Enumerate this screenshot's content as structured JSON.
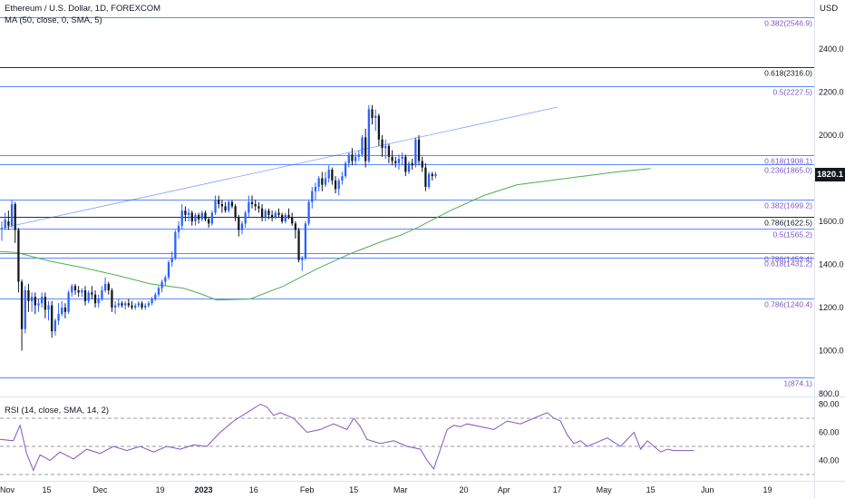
{
  "header": {
    "title": "Ethereum / U.S. Dollar, 1D, FOREXCOM",
    "ma_label": "MA (50, close, 0, SMA, 5)",
    "rsi_label": "RSI (14, close, SMA, 14, 2)",
    "currency": "USD"
  },
  "price_badge": "1820.1",
  "colors": {
    "up": "#2962ff",
    "down": "#131722",
    "ma": "#4caf50",
    "rsi": "#7e57c2",
    "fib_blue": "#2962ff",
    "fib_black": "#131722",
    "trendline": "#2962ff"
  },
  "chart_data": [
    {
      "type": "candlestick",
      "title": "Ethereum / U.S. Dollar, 1D, FOREXCOM",
      "y_axis_ticks": [
        2400,
        2200,
        2000,
        1800,
        1600,
        1400,
        1200,
        1000,
        800
      ],
      "y_tick_labels": [
        "2400.0",
        "2200.0",
        "2000.0",
        "1800.0",
        "1600.0",
        "1400.0",
        "1200.0",
        "1000.0",
        "800.0"
      ],
      "ylim": [
        800,
        2580
      ],
      "x_tick_labels": [
        "Nov",
        "15",
        "Dec",
        "19",
        "2023",
        "16",
        "Feb",
        "15",
        "Mar",
        "20",
        "Apr",
        "17",
        "May",
        "15",
        "Jun",
        "19"
      ],
      "x_tick_days": [
        0,
        14,
        30,
        48,
        61,
        76,
        92,
        106,
        120,
        139,
        151,
        167,
        181,
        195,
        212,
        230
      ],
      "x_range_days": [
        0,
        244
      ],
      "ohlc": [
        [
          1570,
          1600,
          1510,
          1570
        ],
        [
          1570,
          1640,
          1560,
          1610
        ],
        [
          1600,
          1650,
          1560,
          1580
        ],
        [
          1580,
          1700,
          1570,
          1680
        ],
        [
          1680,
          1690,
          1500,
          1560
        ],
        [
          1560,
          1570,
          1270,
          1320
        ],
        [
          1320,
          1330,
          1000,
          1100
        ],
        [
          1100,
          1300,
          1080,
          1280
        ],
        [
          1280,
          1310,
          1180,
          1230
        ],
        [
          1230,
          1270,
          1180,
          1250
        ],
        [
          1250,
          1270,
          1170,
          1210
        ],
        [
          1210,
          1240,
          1180,
          1220
        ],
        [
          1220,
          1270,
          1200,
          1250
        ],
        [
          1250,
          1270,
          1150,
          1190
        ],
        [
          1190,
          1230,
          1140,
          1210
        ],
        [
          1210,
          1230,
          1060,
          1090
        ],
        [
          1090,
          1150,
          1070,
          1140
        ],
        [
          1140,
          1220,
          1120,
          1170
        ],
        [
          1170,
          1230,
          1160,
          1200
        ],
        [
          1200,
          1220,
          1150,
          1180
        ],
        [
          1180,
          1280,
          1170,
          1270
        ],
        [
          1270,
          1310,
          1250,
          1300
        ],
        [
          1300,
          1310,
          1260,
          1280
        ],
        [
          1280,
          1300,
          1250,
          1270
        ],
        [
          1270,
          1290,
          1250,
          1280
        ],
        [
          1280,
          1300,
          1210,
          1230
        ],
        [
          1230,
          1280,
          1220,
          1270
        ],
        [
          1270,
          1300,
          1240,
          1260
        ],
        [
          1260,
          1280,
          1200,
          1220
        ],
        [
          1220,
          1260,
          1200,
          1240
        ],
        [
          1240,
          1300,
          1230,
          1280
        ],
        [
          1280,
          1340,
          1270,
          1310
        ],
        [
          1310,
          1320,
          1260,
          1280
        ],
        [
          1280,
          1290,
          1180,
          1200
        ],
        [
          1200,
          1230,
          1170,
          1210
        ],
        [
          1210,
          1240,
          1200,
          1220
        ],
        [
          1220,
          1230,
          1200,
          1210
        ],
        [
          1210,
          1230,
          1190,
          1220
        ],
        [
          1220,
          1240,
          1200,
          1210
        ],
        [
          1210,
          1230,
          1190,
          1200
        ],
        [
          1200,
          1220,
          1190,
          1210
        ],
        [
          1210,
          1230,
          1200,
          1220
        ],
        [
          1220,
          1230,
          1190,
          1200
        ],
        [
          1200,
          1220,
          1190,
          1210
        ],
        [
          1210,
          1230,
          1200,
          1220
        ],
        [
          1220,
          1250,
          1210,
          1240
        ],
        [
          1240,
          1270,
          1230,
          1260
        ],
        [
          1260,
          1300,
          1250,
          1290
        ],
        [
          1290,
          1330,
          1270,
          1320
        ],
        [
          1320,
          1350,
          1300,
          1340
        ],
        [
          1340,
          1420,
          1330,
          1410
        ],
        [
          1410,
          1460,
          1390,
          1430
        ],
        [
          1430,
          1560,
          1420,
          1550
        ],
        [
          1550,
          1600,
          1520,
          1580
        ],
        [
          1580,
          1680,
          1560,
          1650
        ],
        [
          1650,
          1670,
          1600,
          1630
        ],
        [
          1630,
          1660,
          1600,
          1640
        ],
        [
          1640,
          1650,
          1580,
          1600
        ],
        [
          1600,
          1640,
          1580,
          1630
        ],
        [
          1630,
          1640,
          1590,
          1610
        ],
        [
          1610,
          1650,
          1600,
          1640
        ],
        [
          1640,
          1650,
          1600,
          1610
        ],
        [
          1610,
          1620,
          1570,
          1590
        ],
        [
          1590,
          1650,
          1580,
          1640
        ],
        [
          1640,
          1720,
          1630,
          1700
        ],
        [
          1700,
          1720,
          1660,
          1680
        ],
        [
          1680,
          1700,
          1640,
          1670
        ],
        [
          1670,
          1690,
          1640,
          1650
        ],
        [
          1650,
          1700,
          1640,
          1690
        ],
        [
          1690,
          1700,
          1660,
          1670
        ],
        [
          1670,
          1680,
          1600,
          1620
        ],
        [
          1620,
          1630,
          1530,
          1560
        ],
        [
          1560,
          1600,
          1540,
          1590
        ],
        [
          1590,
          1650,
          1570,
          1640
        ],
        [
          1640,
          1720,
          1620,
          1690
        ],
        [
          1690,
          1720,
          1660,
          1680
        ],
        [
          1680,
          1700,
          1650,
          1670
        ],
        [
          1670,
          1690,
          1640,
          1660
        ],
        [
          1660,
          1680,
          1600,
          1620
        ],
        [
          1620,
          1660,
          1600,
          1650
        ],
        [
          1650,
          1660,
          1610,
          1630
        ],
        [
          1630,
          1650,
          1600,
          1620
        ],
        [
          1620,
          1650,
          1610,
          1640
        ],
        [
          1640,
          1660,
          1620,
          1630
        ],
        [
          1630,
          1640,
          1590,
          1600
        ],
        [
          1600,
          1640,
          1590,
          1630
        ],
        [
          1630,
          1660,
          1610,
          1620
        ],
        [
          1620,
          1640,
          1580,
          1590
        ],
        [
          1590,
          1600,
          1520,
          1560
        ],
        [
          1560,
          1570,
          1410,
          1420
        ],
        [
          1420,
          1440,
          1370,
          1430
        ],
        [
          1430,
          1600,
          1420,
          1590
        ],
        [
          1590,
          1700,
          1580,
          1690
        ],
        [
          1690,
          1760,
          1660,
          1740
        ],
        [
          1740,
          1780,
          1700,
          1760
        ],
        [
          1760,
          1810,
          1740,
          1800
        ],
        [
          1800,
          1830,
          1740,
          1770
        ],
        [
          1770,
          1830,
          1760,
          1800
        ],
        [
          1800,
          1860,
          1780,
          1840
        ],
        [
          1840,
          1850,
          1770,
          1790
        ],
        [
          1790,
          1810,
          1730,
          1750
        ],
        [
          1750,
          1800,
          1720,
          1790
        ],
        [
          1790,
          1830,
          1770,
          1810
        ],
        [
          1810,
          1880,
          1800,
          1870
        ],
        [
          1870,
          1920,
          1850,
          1910
        ],
        [
          1910,
          1940,
          1860,
          1880
        ],
        [
          1880,
          1920,
          1860,
          1900
        ],
        [
          1900,
          1930,
          1880,
          1910
        ],
        [
          1910,
          2000,
          1900,
          1990
        ],
        [
          1990,
          2030,
          1850,
          1880
        ],
        [
          1880,
          2140,
          1870,
          2120
        ],
        [
          2120,
          2140,
          2050,
          2080
        ],
        [
          2080,
          2120,
          2020,
          2090
        ],
        [
          2090,
          2100,
          1950,
          1980
        ],
        [
          1980,
          2000,
          1900,
          1940
        ],
        [
          1940,
          1980,
          1890,
          1950
        ],
        [
          1950,
          1960,
          1870,
          1900
        ],
        [
          1900,
          1930,
          1860,
          1880
        ],
        [
          1880,
          1900,
          1850,
          1870
        ],
        [
          1870,
          1910,
          1840,
          1890
        ],
        [
          1890,
          1920,
          1860,
          1900
        ],
        [
          1900,
          1910,
          1810,
          1830
        ],
        [
          1830,
          1880,
          1820,
          1870
        ],
        [
          1870,
          1890,
          1840,
          1860
        ],
        [
          1860,
          1990,
          1850,
          1980
        ],
        [
          1980,
          2000,
          1860,
          1880
        ],
        [
          1880,
          1900,
          1830,
          1850
        ],
        [
          1850,
          1870,
          1740,
          1760
        ],
        [
          1760,
          1830,
          1750,
          1820
        ],
        [
          1820,
          1830,
          1790,
          1810
        ],
        [
          1810,
          1830,
          1800,
          1820
        ]
      ],
      "ohlc_start_day": 0,
      "ma50": {
        "name": "MA (50, close, 0, SMA, 5)",
        "days": [
          0,
          5,
          15,
          25,
          35,
          45,
          55,
          60,
          65,
          75,
          85,
          95,
          105,
          115,
          120,
          125,
          135,
          145,
          155,
          165,
          175,
          185,
          195
        ],
        "values": [
          1460,
          1455,
          1415,
          1385,
          1350,
          1310,
          1290,
          1265,
          1235,
          1240,
          1300,
          1380,
          1450,
          1510,
          1535,
          1570,
          1650,
          1720,
          1770,
          1790,
          1810,
          1830,
          1845
        ]
      },
      "trendline": {
        "start": [
          1,
          1570
        ],
        "end": [
          167,
          2130
        ]
      },
      "fib_levels": [
        {
          "label": "0.382(2546.9)",
          "value": 2546.9,
          "color": "blue"
        },
        {
          "label": "0.618(2316.0)",
          "value": 2316.0,
          "color": "black"
        },
        {
          "label": "0.5(2227.5)",
          "value": 2227.5,
          "color": "blue"
        },
        {
          "label": "0.618(1908.1)",
          "value": 1908.1,
          "color": "blue"
        },
        {
          "label": "0.236(1865.0)",
          "value": 1865.0,
          "color": "blue"
        },
        {
          "label": "0.382(1699.2)",
          "value": 1699.2,
          "color": "blue"
        },
        {
          "label": "0.786(1622.5)",
          "value": 1622.5,
          "color": "black"
        },
        {
          "label": "0.5(1565.2)",
          "value": 1565.2,
          "color": "blue"
        },
        {
          "label": "0.786(1453.4)",
          "value": 1453.4,
          "color": "blue"
        },
        {
          "label": "0.618(1431.2)",
          "value": 1431.2,
          "color": "blue"
        },
        {
          "label": "0.786(1240.4)",
          "value": 1240.4,
          "color": "blue"
        },
        {
          "label": "1(874.1)",
          "value": 874.1,
          "color": "blue"
        }
      ],
      "last_price": 1820.1
    },
    {
      "type": "line",
      "title": "RSI (14, close, SMA, 14, 2)",
      "y_axis_ticks": [
        80,
        60,
        40
      ],
      "y_tick_labels": [
        "80.00",
        "60.00",
        "40.00"
      ],
      "ylim": [
        30,
        84
      ],
      "reference_lines": [
        70,
        50,
        30
      ],
      "days": [
        0,
        4,
        6,
        8,
        10,
        12,
        15,
        18,
        22,
        26,
        30,
        34,
        38,
        42,
        46,
        50,
        54,
        58,
        62,
        66,
        70,
        74,
        78,
        80,
        82,
        84,
        86,
        88,
        92,
        96,
        100,
        104,
        106,
        108,
        110,
        114,
        118,
        122,
        126,
        128,
        130,
        132,
        134,
        136,
        138,
        140,
        144,
        148,
        152,
        156,
        160,
        164,
        166,
        168,
        170,
        172,
        174,
        176,
        178,
        182,
        186,
        190,
        192,
        194,
        196,
        198,
        200,
        202,
        204,
        206,
        208
      ],
      "values": [
        55,
        54,
        65,
        45,
        33,
        44,
        40,
        46,
        41,
        48,
        45,
        50,
        47,
        50,
        46,
        50,
        48,
        51,
        50,
        60,
        68,
        74,
        80,
        78,
        72,
        74,
        72,
        70,
        60,
        62,
        66,
        62,
        70,
        64,
        55,
        52,
        54,
        50,
        48,
        40,
        34,
        48,
        62,
        65,
        64,
        66,
        64,
        62,
        68,
        66,
        70,
        74,
        70,
        68,
        58,
        52,
        54,
        50,
        52,
        56,
        50,
        60,
        48,
        54,
        50,
        46,
        48,
        47,
        47,
        47,
        47
      ]
    }
  ]
}
